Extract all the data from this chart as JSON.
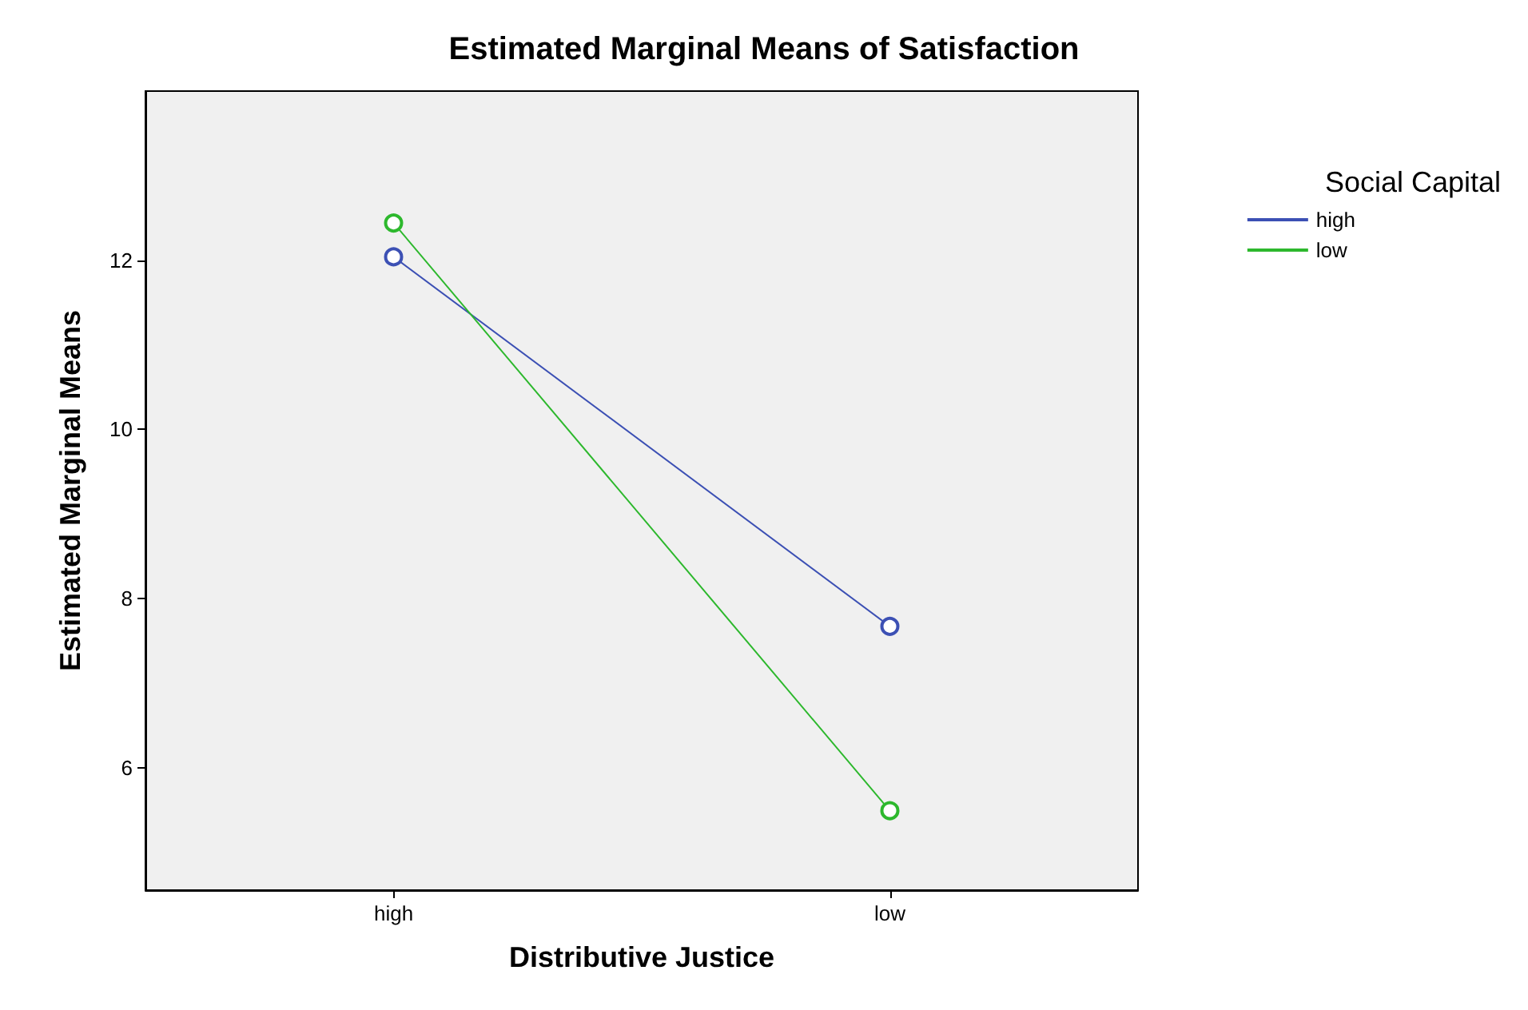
{
  "chart_data": {
    "type": "line",
    "title": "Estimated Marginal Means of Satisfaction",
    "xlabel": "Distributive Justice",
    "ylabel": "Estimated Marginal Means",
    "legend_title": "Social Capital",
    "categories": [
      "high",
      "low"
    ],
    "series": [
      {
        "name": "high",
        "color": "#3c50b4",
        "values": [
          12.04,
          7.67
        ]
      },
      {
        "name": "low",
        "color": "#2db82d",
        "values": [
          12.44,
          5.49
        ]
      }
    ],
    "ylim": [
      4.55,
      14.0
    ],
    "yticks": [
      6,
      8,
      10,
      12
    ],
    "grid": false,
    "legend": "top right",
    "marker": "circle",
    "line_style": "solid"
  }
}
